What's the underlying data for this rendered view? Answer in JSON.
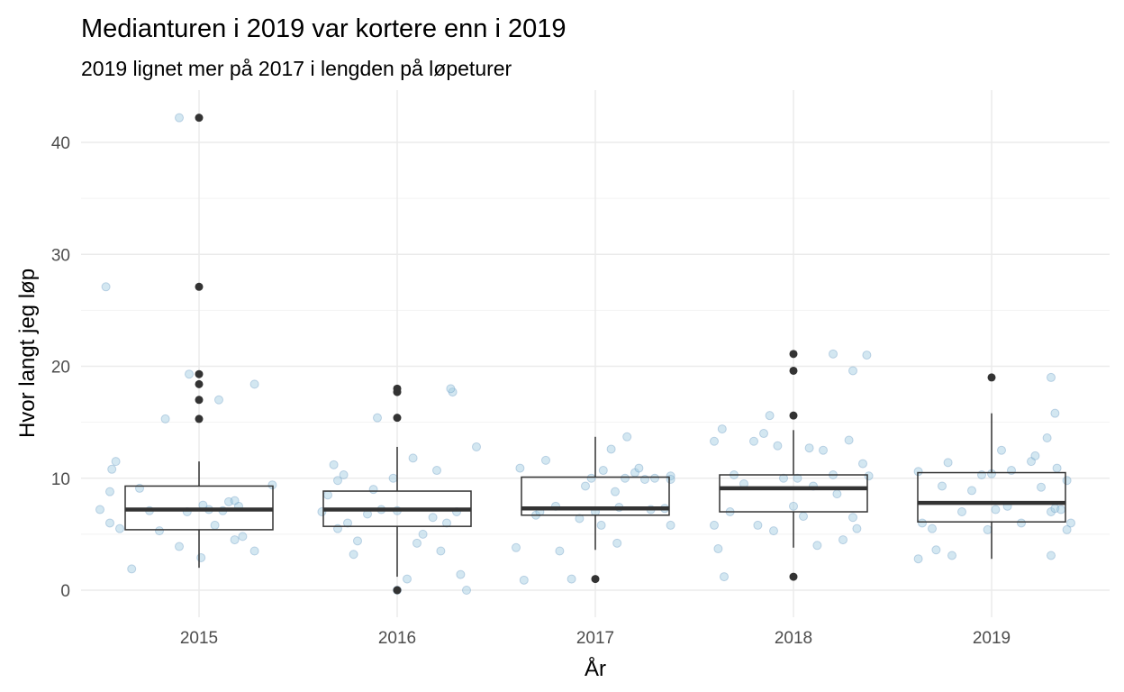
{
  "chart_data": {
    "type": "boxplot",
    "title": "Medianturen i 2019 var kortere enn i 2019",
    "subtitle": "2019 lignet mer på 2017 i lengden på løpeturer",
    "xlabel": "År",
    "ylabel": "Hvor langt jeg løp",
    "categories": [
      "2015",
      "2016",
      "2017",
      "2018",
      "2019"
    ],
    "ylim": [
      -2.3,
      44.8
    ],
    "yticks": [
      0,
      10,
      20,
      30,
      40
    ],
    "ytick_labels": [
      "0",
      "10",
      "20",
      "30",
      "40"
    ],
    "grid": true,
    "colors": {
      "points": "#9ecae1",
      "box": "#333333",
      "grid": "#ebebeb"
    },
    "boxes": [
      {
        "category": "2015",
        "whisker_low": 2.0,
        "q1": 5.4,
        "median": 7.2,
        "q3": 9.3,
        "whisker_high": 11.5,
        "outliers": [
          42.2,
          27.1,
          19.3,
          18.4,
          17.0,
          15.3
        ]
      },
      {
        "category": "2016",
        "whisker_low": 1.2,
        "q1": 5.7,
        "median": 7.2,
        "q3": 8.85,
        "whisker_high": 12.8,
        "outliers": [
          0.0,
          15.4,
          17.7,
          18.0
        ]
      },
      {
        "category": "2017",
        "whisker_low": 3.6,
        "q1": 6.7,
        "median": 7.3,
        "q3": 10.1,
        "whisker_high": 13.7,
        "outliers": [
          1.0
        ]
      },
      {
        "category": "2018",
        "whisker_low": 3.8,
        "q1": 7.0,
        "median": 9.1,
        "q3": 10.3,
        "whisker_high": 14.3,
        "outliers": [
          1.2,
          15.6,
          19.6,
          21.1
        ]
      },
      {
        "category": "2019",
        "whisker_low": 2.8,
        "q1": 6.1,
        "median": 7.8,
        "q3": 10.5,
        "whisker_high": 15.8,
        "outliers": [
          19.0
        ]
      }
    ],
    "jitter_points": {
      "2015": [
        [
          -0.34,
          1.9
        ],
        [
          -0.1,
          42.2
        ],
        [
          -0.47,
          27.1
        ],
        [
          -0.05,
          19.3
        ],
        [
          0.1,
          17.0
        ],
        [
          0.28,
          18.4
        ],
        [
          -0.17,
          15.3
        ],
        [
          -0.42,
          11.5
        ],
        [
          -0.44,
          10.8
        ],
        [
          -0.45,
          8.8
        ],
        [
          -0.3,
          9.1
        ],
        [
          -0.5,
          7.2
        ],
        [
          -0.45,
          6.0
        ],
        [
          -0.4,
          5.5
        ],
        [
          -0.2,
          5.3
        ],
        [
          -0.1,
          3.9
        ],
        [
          0.01,
          2.9
        ],
        [
          0.08,
          5.8
        ],
        [
          0.05,
          7.2
        ],
        [
          0.15,
          7.9
        ],
        [
          0.2,
          7.5
        ],
        [
          0.18,
          4.5
        ],
        [
          0.22,
          4.8
        ],
        [
          0.28,
          3.5
        ],
        [
          0.37,
          9.4
        ],
        [
          -0.25,
          7.1
        ],
        [
          0.02,
          7.6
        ],
        [
          0.12,
          7.1
        ],
        [
          0.18,
          8.0
        ],
        [
          -0.06,
          7.0
        ]
      ],
      "2016": [
        [
          -0.38,
          7.0
        ],
        [
          -0.35,
          8.5
        ],
        [
          -0.32,
          11.2
        ],
        [
          -0.3,
          9.8
        ],
        [
          -0.27,
          10.3
        ],
        [
          -0.25,
          6.0
        ],
        [
          -0.3,
          5.5
        ],
        [
          -0.2,
          4.4
        ],
        [
          -0.22,
          3.2
        ],
        [
          -0.1,
          15.4
        ],
        [
          -0.08,
          7.2
        ],
        [
          0,
          7.1
        ],
        [
          -0.02,
          10.0
        ],
        [
          0.08,
          11.8
        ],
        [
          0.0,
          0.0
        ],
        [
          0.05,
          1.0
        ],
        [
          0.1,
          4.2
        ],
        [
          0.13,
          5.0
        ],
        [
          0.18,
          6.5
        ],
        [
          0.2,
          10.7
        ],
        [
          0.22,
          3.5
        ],
        [
          0.25,
          6.0
        ],
        [
          0.28,
          17.7
        ],
        [
          0.27,
          18.0
        ],
        [
          0.32,
          1.4
        ],
        [
          0.35,
          0.0
        ],
        [
          0.4,
          12.8
        ],
        [
          0.3,
          7.0
        ],
        [
          -0.15,
          6.8
        ],
        [
          -0.12,
          9.0
        ]
      ],
      "2017": [
        [
          -0.38,
          10.9
        ],
        [
          -0.4,
          3.8
        ],
        [
          -0.36,
          0.9
        ],
        [
          -0.3,
          6.7
        ],
        [
          -0.25,
          11.6
        ],
        [
          -0.18,
          3.5
        ],
        [
          -0.2,
          7.5
        ],
        [
          -0.12,
          1.0
        ],
        [
          -0.05,
          9.3
        ],
        [
          -0.02,
          10.0
        ],
        [
          0.04,
          10.7
        ],
        [
          0.03,
          5.8
        ],
        [
          0.08,
          12.6
        ],
        [
          0.1,
          8.8
        ],
        [
          0.11,
          4.2
        ],
        [
          0.15,
          10.0
        ],
        [
          0.2,
          10.5
        ],
        [
          0.22,
          10.9
        ],
        [
          0.25,
          9.9
        ],
        [
          0.28,
          7.2
        ],
        [
          0.16,
          13.7
        ],
        [
          0.3,
          10.0
        ],
        [
          0.35,
          7.3
        ],
        [
          0.38,
          10.2
        ],
        [
          0.38,
          5.8
        ],
        [
          0.38,
          9.9
        ],
        [
          -0.28,
          7.0
        ],
        [
          0.0,
          7.0
        ],
        [
          -0.08,
          6.4
        ],
        [
          0.12,
          7.4
        ]
      ],
      "2018": [
        [
          -0.4,
          13.3
        ],
        [
          -0.36,
          14.4
        ],
        [
          -0.38,
          3.7
        ],
        [
          -0.35,
          1.2
        ],
        [
          -0.32,
          7.0
        ],
        [
          -0.3,
          10.3
        ],
        [
          -0.25,
          9.5
        ],
        [
          -0.2,
          13.3
        ],
        [
          -0.15,
          14.0
        ],
        [
          -0.12,
          15.6
        ],
        [
          -0.08,
          12.9
        ],
        [
          -0.05,
          10.0
        ],
        [
          -0.1,
          5.3
        ],
        [
          0.0,
          7.5
        ],
        [
          0.02,
          10.0
        ],
        [
          0.05,
          6.6
        ],
        [
          0.08,
          12.7
        ],
        [
          0.1,
          9.3
        ],
        [
          0.12,
          4.0
        ],
        [
          0.15,
          12.5
        ],
        [
          0.2,
          10.3
        ],
        [
          0.22,
          8.6
        ],
        [
          0.25,
          4.5
        ],
        [
          0.28,
          13.4
        ],
        [
          0.3,
          6.5
        ],
        [
          0.2,
          21.1
        ],
        [
          0.3,
          19.6
        ],
        [
          0.37,
          21.0
        ],
        [
          0.35,
          11.3
        ],
        [
          0.38,
          10.2
        ],
        [
          0.32,
          5.5
        ],
        [
          -0.18,
          5.8
        ],
        [
          -0.4,
          5.8
        ]
      ],
      "2019": [
        [
          -0.37,
          10.6
        ],
        [
          -0.35,
          6.0
        ],
        [
          -0.37,
          2.8
        ],
        [
          -0.3,
          5.5
        ],
        [
          -0.28,
          3.6
        ],
        [
          -0.25,
          9.3
        ],
        [
          -0.2,
          3.1
        ],
        [
          -0.22,
          11.4
        ],
        [
          -0.1,
          8.9
        ],
        [
          -0.05,
          10.3
        ],
        [
          -0.02,
          5.4
        ],
        [
          0.02,
          7.2
        ],
        [
          0.05,
          12.5
        ],
        [
          0.1,
          10.7
        ],
        [
          0.08,
          7.5
        ],
        [
          0.15,
          6.0
        ],
        [
          0.2,
          11.5
        ],
        [
          0.22,
          12.0
        ],
        [
          0.25,
          9.2
        ],
        [
          0.28,
          13.6
        ],
        [
          0.3,
          7.0
        ],
        [
          0.32,
          7.3
        ],
        [
          0.33,
          10.9
        ],
        [
          0.3,
          19.0
        ],
        [
          0.32,
          15.8
        ],
        [
          0.35,
          7.2
        ],
        [
          0.38,
          9.8
        ],
        [
          0.4,
          6.0
        ],
        [
          0.38,
          5.4
        ],
        [
          0.3,
          3.1
        ],
        [
          -0.15,
          7.0
        ],
        [
          0.0,
          10.4
        ]
      ]
    }
  }
}
